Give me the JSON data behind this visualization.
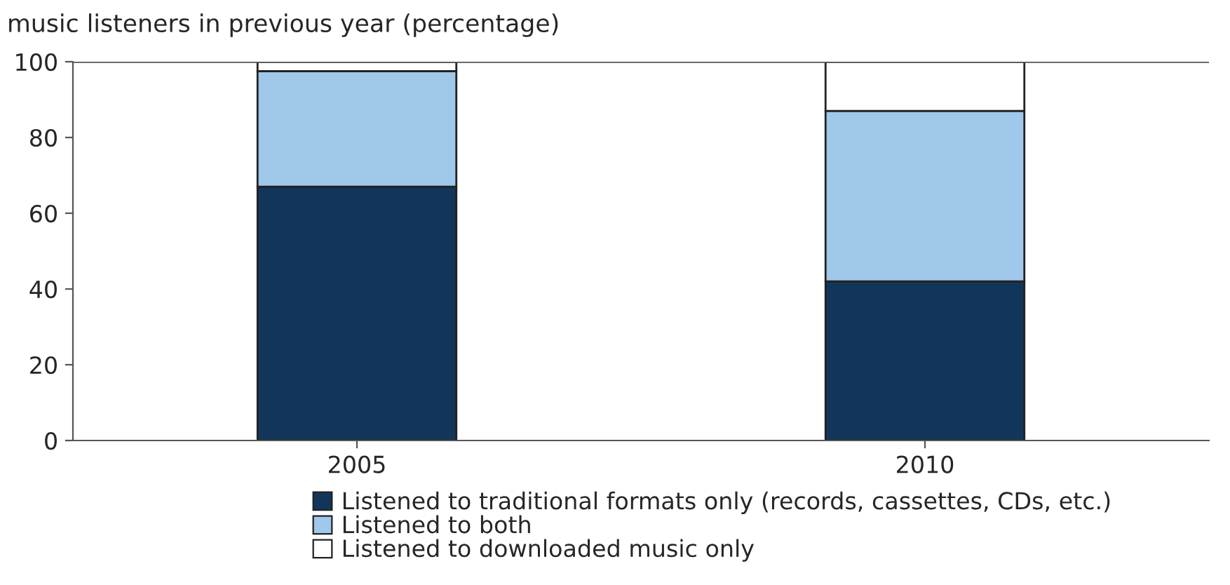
{
  "chart_data": {
    "type": "bar",
    "stacked": true,
    "title": "music listeners in previous year (percentage)",
    "categories": [
      "2005",
      "2010"
    ],
    "series": [
      {
        "name": "Listened to traditional formats only (records, cassettes, CDs, etc.)",
        "color": "#12365b",
        "values": [
          67,
          42
        ]
      },
      {
        "name": "Listened to both",
        "color": "#9fc8ea",
        "values": [
          30.5,
          45
        ]
      },
      {
        "name": "Listened to downloaded music only",
        "color": "#ffffff",
        "values": [
          2.5,
          13
        ]
      }
    ],
    "ylim": [
      0,
      100
    ],
    "yticks": [
      0,
      20,
      40,
      60,
      80,
      100
    ],
    "grid": false,
    "legend": "bottom"
  }
}
